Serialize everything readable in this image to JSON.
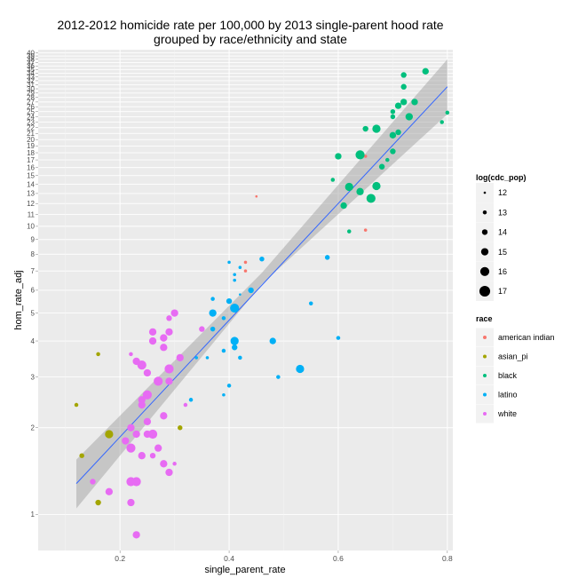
{
  "chart_data": {
    "type": "scatter",
    "title": "2012-2012 homicide rate per 100,000 by 2013 single-parent hood rate",
    "subtitle": "grouped by race/ethnicity and state",
    "xlabel": "single_parent_rate",
    "ylabel": "hom_rate_adj",
    "x_scale": "linear",
    "y_scale": "log",
    "xlim": [
      0.05,
      0.81
    ],
    "ylim": [
      0.75,
      41
    ],
    "x_ticks": [
      0.2,
      0.4,
      0.6,
      0.8
    ],
    "x_tick_labels": [
      "0.2",
      "0.4",
      "0.6",
      "0.8"
    ],
    "y_ticks": [
      1,
      2,
      3,
      4,
      5,
      6,
      7,
      8,
      9,
      10,
      11,
      12,
      13,
      14,
      15,
      16,
      17,
      18,
      19,
      20,
      21,
      22,
      23,
      24,
      25,
      26,
      27,
      28,
      29,
      30,
      31,
      32,
      33,
      34,
      35,
      36,
      37,
      38,
      39,
      40
    ],
    "y_tick_labels": [
      "1",
      "2",
      "3",
      "4",
      "5",
      "6",
      "7",
      "8",
      "9",
      "10",
      "11",
      "12",
      "13",
      "14",
      "15",
      "16",
      "17",
      "18",
      "19",
      "20",
      "21",
      "22",
      "23",
      "24",
      "25",
      "26",
      "27",
      "28",
      "29",
      "30",
      "31",
      "32",
      "33",
      "34",
      "35",
      "36",
      "37",
      "38",
      "39",
      "40"
    ],
    "smooth": {
      "method": "lm",
      "color": "#3366FF",
      "band_color": "#999999",
      "line": [
        [
          0.12,
          1.28
        ],
        [
          0.8,
          30.5
        ]
      ],
      "band_lower": [
        [
          0.12,
          1.05
        ],
        [
          0.46,
          6.3
        ],
        [
          0.8,
          24.5
        ]
      ],
      "band_upper": [
        [
          0.12,
          1.55
        ],
        [
          0.46,
          6.9
        ],
        [
          0.8,
          38.0
        ]
      ]
    },
    "size_legend": {
      "title": "log(cdc_pop)",
      "values": [
        12,
        13,
        14,
        15,
        16,
        17
      ]
    },
    "color_legend": {
      "title": "race",
      "entries": [
        {
          "name": "american indian",
          "color": "#F8766D"
        },
        {
          "name": "asian_pi",
          "color": "#A3A500"
        },
        {
          "name": "black",
          "color": "#00BF7D"
        },
        {
          "name": "latino",
          "color": "#00B0F6"
        },
        {
          "name": "white",
          "color": "#E76BF3"
        }
      ]
    },
    "series": [
      {
        "name": "american indian",
        "color": "#F8766D",
        "points": [
          {
            "x": 0.45,
            "y": 12.7,
            "s": 12
          },
          {
            "x": 0.43,
            "y": 7.0,
            "s": 12.5
          },
          {
            "x": 0.43,
            "y": 7.5,
            "s": 12.5
          },
          {
            "x": 0.65,
            "y": 17.5,
            "s": 12.5
          },
          {
            "x": 0.65,
            "y": 9.7,
            "s": 12.5
          }
        ]
      },
      {
        "name": "asian_pi",
        "color": "#A3A500",
        "points": [
          {
            "x": 0.12,
            "y": 2.4,
            "s": 13
          },
          {
            "x": 0.13,
            "y": 1.6,
            "s": 13.5
          },
          {
            "x": 0.16,
            "y": 3.6,
            "s": 13
          },
          {
            "x": 0.16,
            "y": 1.1,
            "s": 14
          },
          {
            "x": 0.18,
            "y": 1.9,
            "s": 15.5
          },
          {
            "x": 0.31,
            "y": 2.0,
            "s": 13.5
          }
        ]
      },
      {
        "name": "black",
        "color": "#00BF7D",
        "points": [
          {
            "x": 0.62,
            "y": 9.6,
            "s": 13
          },
          {
            "x": 0.61,
            "y": 11.8,
            "s": 14.5
          },
          {
            "x": 0.6,
            "y": 17.5,
            "s": 14.5
          },
          {
            "x": 0.59,
            "y": 14.5,
            "s": 13
          },
          {
            "x": 0.62,
            "y": 13.7,
            "s": 15.5
          },
          {
            "x": 0.64,
            "y": 13.2,
            "s": 15
          },
          {
            "x": 0.64,
            "y": 17.7,
            "s": 16
          },
          {
            "x": 0.66,
            "y": 12.5,
            "s": 16
          },
          {
            "x": 0.67,
            "y": 13.8,
            "s": 15.5
          },
          {
            "x": 0.65,
            "y": 21.8,
            "s": 14
          },
          {
            "x": 0.67,
            "y": 21.8,
            "s": 15.5
          },
          {
            "x": 0.68,
            "y": 16.1,
            "s": 14
          },
          {
            "x": 0.69,
            "y": 17.0,
            "s": 13
          },
          {
            "x": 0.7,
            "y": 18.2,
            "s": 14
          },
          {
            "x": 0.7,
            "y": 20.7,
            "s": 14.5
          },
          {
            "x": 0.71,
            "y": 21.2,
            "s": 14
          },
          {
            "x": 0.7,
            "y": 24.0,
            "s": 13.5
          },
          {
            "x": 0.7,
            "y": 25.0,
            "s": 13.5
          },
          {
            "x": 0.71,
            "y": 26.2,
            "s": 14.5
          },
          {
            "x": 0.72,
            "y": 27.0,
            "s": 14.5
          },
          {
            "x": 0.73,
            "y": 24.0,
            "s": 15
          },
          {
            "x": 0.74,
            "y": 27.0,
            "s": 14.5
          },
          {
            "x": 0.72,
            "y": 30.5,
            "s": 14
          },
          {
            "x": 0.72,
            "y": 33.5,
            "s": 14
          },
          {
            "x": 0.76,
            "y": 34.5,
            "s": 14.5
          },
          {
            "x": 0.79,
            "y": 23.0,
            "s": 13
          },
          {
            "x": 0.8,
            "y": 24.8,
            "s": 13
          }
        ]
      },
      {
        "name": "latino",
        "color": "#00B0F6",
        "points": [
          {
            "x": 0.4,
            "y": 7.5,
            "s": 12.5
          },
          {
            "x": 0.42,
            "y": 7.2,
            "s": 12.5
          },
          {
            "x": 0.46,
            "y": 7.7,
            "s": 13.5
          },
          {
            "x": 0.41,
            "y": 6.8,
            "s": 12.5
          },
          {
            "x": 0.41,
            "y": 6.5,
            "s": 12.5
          },
          {
            "x": 0.44,
            "y": 6.0,
            "s": 14
          },
          {
            "x": 0.42,
            "y": 5.8,
            "s": 12
          },
          {
            "x": 0.37,
            "y": 5.6,
            "s": 13
          },
          {
            "x": 0.4,
            "y": 5.5,
            "s": 14
          },
          {
            "x": 0.41,
            "y": 5.2,
            "s": 16
          },
          {
            "x": 0.39,
            "y": 4.8,
            "s": 13
          },
          {
            "x": 0.37,
            "y": 5.0,
            "s": 15
          },
          {
            "x": 0.37,
            "y": 4.4,
            "s": 13.5
          },
          {
            "x": 0.41,
            "y": 4.0,
            "s": 15.5
          },
          {
            "x": 0.41,
            "y": 3.8,
            "s": 14
          },
          {
            "x": 0.42,
            "y": 3.5,
            "s": 13
          },
          {
            "x": 0.39,
            "y": 3.7,
            "s": 13
          },
          {
            "x": 0.36,
            "y": 3.5,
            "s": 12.5
          },
          {
            "x": 0.34,
            "y": 3.5,
            "s": 12.5
          },
          {
            "x": 0.48,
            "y": 4.0,
            "s": 14.5
          },
          {
            "x": 0.49,
            "y": 3.0,
            "s": 13
          },
          {
            "x": 0.53,
            "y": 3.2,
            "s": 15.5
          },
          {
            "x": 0.55,
            "y": 5.4,
            "s": 13
          },
          {
            "x": 0.58,
            "y": 7.8,
            "s": 13.5
          },
          {
            "x": 0.6,
            "y": 4.1,
            "s": 13
          },
          {
            "x": 0.4,
            "y": 2.8,
            "s": 13
          },
          {
            "x": 0.39,
            "y": 2.6,
            "s": 12.5
          },
          {
            "x": 0.33,
            "y": 2.5,
            "s": 13
          }
        ]
      },
      {
        "name": "white",
        "color": "#E76BF3",
        "points": [
          {
            "x": 0.3,
            "y": 5.0,
            "s": 15
          },
          {
            "x": 0.29,
            "y": 4.8,
            "s": 14
          },
          {
            "x": 0.26,
            "y": 4.3,
            "s": 15
          },
          {
            "x": 0.26,
            "y": 4.0,
            "s": 15
          },
          {
            "x": 0.28,
            "y": 4.1,
            "s": 15
          },
          {
            "x": 0.28,
            "y": 3.8,
            "s": 15
          },
          {
            "x": 0.29,
            "y": 4.3,
            "s": 15
          },
          {
            "x": 0.35,
            "y": 4.4,
            "s": 14
          },
          {
            "x": 0.31,
            "y": 3.5,
            "s": 15
          },
          {
            "x": 0.29,
            "y": 3.2,
            "s": 16
          },
          {
            "x": 0.24,
            "y": 3.3,
            "s": 16
          },
          {
            "x": 0.25,
            "y": 3.1,
            "s": 15
          },
          {
            "x": 0.22,
            "y": 3.6,
            "s": 13
          },
          {
            "x": 0.23,
            "y": 3.4,
            "s": 15
          },
          {
            "x": 0.27,
            "y": 2.9,
            "s": 16
          },
          {
            "x": 0.29,
            "y": 2.9,
            "s": 15
          },
          {
            "x": 0.25,
            "y": 2.6,
            "s": 16
          },
          {
            "x": 0.24,
            "y": 2.5,
            "s": 15
          },
          {
            "x": 0.24,
            "y": 2.4,
            "s": 15
          },
          {
            "x": 0.32,
            "y": 2.4,
            "s": 13
          },
          {
            "x": 0.28,
            "y": 2.2,
            "s": 15
          },
          {
            "x": 0.25,
            "y": 2.1,
            "s": 15
          },
          {
            "x": 0.22,
            "y": 2.0,
            "s": 15
          },
          {
            "x": 0.23,
            "y": 1.9,
            "s": 15
          },
          {
            "x": 0.26,
            "y": 1.9,
            "s": 16
          },
          {
            "x": 0.25,
            "y": 1.9,
            "s": 15
          },
          {
            "x": 0.21,
            "y": 1.8,
            "s": 15
          },
          {
            "x": 0.27,
            "y": 1.7,
            "s": 15
          },
          {
            "x": 0.22,
            "y": 1.7,
            "s": 16
          },
          {
            "x": 0.24,
            "y": 1.6,
            "s": 15
          },
          {
            "x": 0.26,
            "y": 1.6,
            "s": 14
          },
          {
            "x": 0.28,
            "y": 1.5,
            "s": 15
          },
          {
            "x": 0.3,
            "y": 1.5,
            "s": 13
          },
          {
            "x": 0.29,
            "y": 1.4,
            "s": 15
          },
          {
            "x": 0.22,
            "y": 1.3,
            "s": 16
          },
          {
            "x": 0.23,
            "y": 1.3,
            "s": 16
          },
          {
            "x": 0.15,
            "y": 1.3,
            "s": 14
          },
          {
            "x": 0.18,
            "y": 1.2,
            "s": 15
          },
          {
            "x": 0.22,
            "y": 1.1,
            "s": 15
          },
          {
            "x": 0.23,
            "y": 0.85,
            "s": 15
          }
        ]
      }
    ]
  }
}
